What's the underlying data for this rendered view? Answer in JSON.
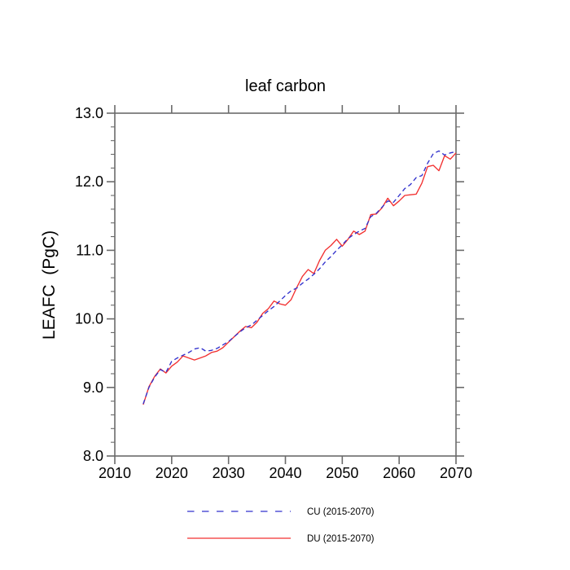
{
  "page": {
    "background": "#ffffff"
  },
  "header": {
    "title": "leaf carbon"
  },
  "axes": {
    "ylabel": "LEAFC  (PgC)",
    "axis_color": "#6b6b6b",
    "text_color": "#000000",
    "x": {
      "min": 2010,
      "max": 2070,
      "major_ticks": [
        2010,
        2020,
        2030,
        2040,
        2050,
        2060,
        2070
      ],
      "tick_labels": [
        "2010",
        "2020",
        "2030",
        "2040",
        "2050",
        "2060",
        "2070"
      ]
    },
    "y": {
      "min": 8.0,
      "max": 13.0,
      "minor_step": 0.2,
      "major_ticks": [
        8.0,
        9.0,
        10.0,
        11.0,
        12.0,
        13.0
      ],
      "tick_labels": [
        "8.0",
        "9.0",
        "10.0",
        "11.0",
        "12.0",
        "13.0"
      ]
    }
  },
  "legend": {
    "items": [
      {
        "label": "CU (2015-2070)",
        "style": "dashed",
        "color": "#3232cd"
      },
      {
        "label": "DU (2015-2070)",
        "style": "solid",
        "color": "#f23030"
      }
    ]
  },
  "chart_data": {
    "type": "line",
    "title": "leaf carbon",
    "xlabel": "",
    "ylabel": "LEAFC  (PgC)",
    "xlim": [
      2010,
      2070
    ],
    "ylim": [
      8.0,
      13.0
    ],
    "grid": false,
    "legend_position": "bottom",
    "x": [
      2015,
      2016,
      2017,
      2018,
      2019,
      2020,
      2021,
      2022,
      2023,
      2024,
      2025,
      2026,
      2027,
      2028,
      2029,
      2030,
      2031,
      2032,
      2033,
      2034,
      2035,
      2036,
      2037,
      2038,
      2039,
      2040,
      2041,
      2042,
      2043,
      2044,
      2045,
      2046,
      2047,
      2048,
      2049,
      2050,
      2051,
      2052,
      2053,
      2054,
      2055,
      2056,
      2057,
      2058,
      2059,
      2060,
      2061,
      2062,
      2063,
      2064,
      2065,
      2066,
      2067,
      2068,
      2069,
      2070
    ],
    "series": [
      {
        "name": "CU (2015-2070)",
        "color": "#3232cd",
        "dash": "dashed",
        "values": [
          8.76,
          9.0,
          9.15,
          9.26,
          9.22,
          9.38,
          9.43,
          9.47,
          9.51,
          9.56,
          9.58,
          9.53,
          9.54,
          9.57,
          9.62,
          9.67,
          9.74,
          9.81,
          9.87,
          9.91,
          9.98,
          10.05,
          10.12,
          10.18,
          10.26,
          10.34,
          10.41,
          10.45,
          10.52,
          10.58,
          10.65,
          10.73,
          10.83,
          10.91,
          11.0,
          11.08,
          11.17,
          11.23,
          11.28,
          11.32,
          11.49,
          11.54,
          11.63,
          11.72,
          11.7,
          11.8,
          11.9,
          11.96,
          12.06,
          12.09,
          12.27,
          12.41,
          12.45,
          12.39,
          12.42,
          12.44
        ]
      },
      {
        "name": "DU (2015-2070)",
        "color": "#f23030",
        "dash": "solid",
        "values": [
          8.75,
          9.01,
          9.16,
          9.27,
          9.21,
          9.31,
          9.37,
          9.46,
          9.43,
          9.4,
          9.43,
          9.46,
          9.51,
          9.53,
          9.58,
          9.66,
          9.74,
          9.82,
          9.89,
          9.87,
          9.95,
          10.08,
          10.15,
          10.26,
          10.22,
          10.2,
          10.28,
          10.46,
          10.62,
          10.72,
          10.66,
          10.85,
          11.0,
          11.07,
          11.16,
          11.06,
          11.16,
          11.28,
          11.23,
          11.28,
          11.52,
          11.53,
          11.62,
          11.76,
          11.65,
          11.72,
          11.8,
          11.81,
          11.82,
          11.98,
          12.22,
          12.24,
          12.16,
          12.38,
          12.33,
          12.42
        ]
      }
    ]
  }
}
